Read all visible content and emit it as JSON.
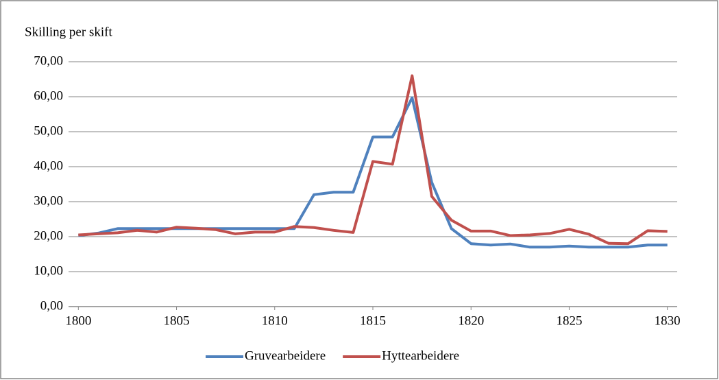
{
  "chart_data": {
    "type": "line",
    "y_label": "Skilling per skift",
    "x": [
      1800,
      1801,
      1802,
      1803,
      1804,
      1805,
      1806,
      1807,
      1808,
      1809,
      1810,
      1811,
      1812,
      1813,
      1814,
      1815,
      1816,
      1817,
      1818,
      1819,
      1820,
      1821,
      1822,
      1823,
      1824,
      1825,
      1826,
      1827,
      1828,
      1829,
      1830
    ],
    "series": [
      {
        "name": "Gruvearbeidere",
        "color": "#4f81bd",
        "values": [
          20.3,
          21,
          22.3,
          22.3,
          22.3,
          22.3,
          22.3,
          22.3,
          22.3,
          22.3,
          22.3,
          22.3,
          32,
          32.7,
          32.7,
          48.5,
          48.5,
          59.7,
          35.5,
          22.3,
          18,
          17.6,
          17.9,
          17,
          17,
          17.3,
          17,
          17,
          17,
          17.6,
          17.6
        ]
      },
      {
        "name": "Hyttearbeidere",
        "color": "#c0504d",
        "values": [
          20.5,
          20.8,
          21.1,
          21.8,
          21.3,
          22.7,
          22.4,
          22,
          20.8,
          21.3,
          21.3,
          22.9,
          22.6,
          21.8,
          21.2,
          41.5,
          40.7,
          66,
          31.5,
          24.7,
          21.6,
          21.6,
          20.3,
          20.5,
          20.9,
          22.1,
          20.7,
          18.1,
          18,
          21.7,
          21.5
        ]
      }
    ],
    "xlim": [
      1799.5,
      1830.5
    ],
    "xticks": [
      1800,
      1805,
      1810,
      1815,
      1820,
      1825,
      1830
    ],
    "ylim": [
      0,
      70
    ],
    "yticks": [
      {
        "value": 0,
        "label": "0,00"
      },
      {
        "value": 10,
        "label": "10,00"
      },
      {
        "value": 20,
        "label": "20,00"
      },
      {
        "value": 30,
        "label": "30,00"
      },
      {
        "value": 40,
        "label": "40,00"
      },
      {
        "value": 50,
        "label": "50,00"
      },
      {
        "value": 60,
        "label": "60,00"
      },
      {
        "value": 70,
        "label": "70,00"
      }
    ],
    "grid": true,
    "legend": "bottom"
  }
}
